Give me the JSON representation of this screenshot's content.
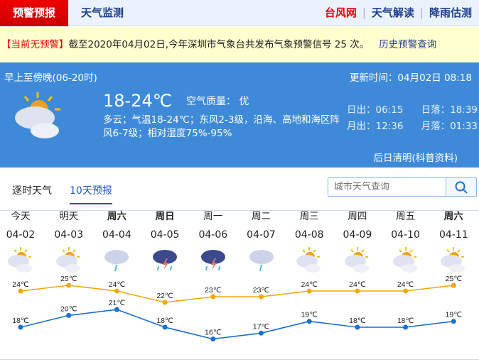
{
  "nav": {
    "active": "预警预报",
    "monitor": "天气监测",
    "links": [
      "台风网",
      "天气解读",
      "降雨估测"
    ]
  },
  "notice": {
    "status": "【当前无预警】",
    "text": "截至2020年04月02日,今年深圳市气象台共发布气象预警信号 25 次。",
    "history": "历史预警查询"
  },
  "current": {
    "period": "早上至傍晚(06-20时)",
    "update": "更新时间：04月02日 08:18",
    "temp": "18-24℃",
    "air": "空气质量： 优",
    "desc": "多云；气温18-24℃；东风2-3级，沿海、高地和海区阵风6-7级；相对湿度75%-95%",
    "sunrise": "日出：06:15",
    "sunset": "日落：18:39",
    "moonrise": "月出：12:36",
    "moonset": "月落：01:33",
    "note": "后日清明(科普资料)",
    "icon": "partly-cloudy"
  },
  "tabs": [
    "逐时天气",
    "10天预报"
  ],
  "search": {
    "placeholder": "城市天气查询"
  },
  "forecast": [
    {
      "day": "今天",
      "date": "04-02",
      "icon": "partly-cloudy",
      "high": "24℃",
      "low": "18℃"
    },
    {
      "day": "明天",
      "date": "04-03",
      "icon": "partly-cloudy",
      "high": "25℃",
      "low": "20℃"
    },
    {
      "day": "周六",
      "date": "04-04",
      "icon": "light-rain",
      "high": "24℃",
      "low": "21℃"
    },
    {
      "day": "周日",
      "date": "04-05",
      "icon": "thunderstorm",
      "high": "22℃",
      "low": "18℃"
    },
    {
      "day": "周一",
      "date": "04-06",
      "icon": "thunderstorm",
      "high": "23℃",
      "low": "16℃"
    },
    {
      "day": "周二",
      "date": "04-07",
      "icon": "light-rain",
      "high": "23℃",
      "low": "17℃"
    },
    {
      "day": "周三",
      "date": "04-08",
      "icon": "partly-cloudy",
      "high": "24℃",
      "low": "19℃"
    },
    {
      "day": "周四",
      "date": "04-09",
      "icon": "partly-cloudy",
      "high": "24℃",
      "low": "18℃"
    },
    {
      "day": "周五",
      "date": "04-10",
      "icon": "partly-cloudy",
      "high": "24℃",
      "low": "18℃"
    },
    {
      "day": "周六",
      "date": "04-11",
      "icon": "partly-cloudy",
      "high": "25℃",
      "low": "19℃"
    }
  ],
  "chart_data": {
    "type": "line",
    "categories": [
      "04-02",
      "04-03",
      "04-04",
      "04-05",
      "04-06",
      "04-07",
      "04-08",
      "04-09",
      "04-10",
      "04-11"
    ],
    "series": [
      {
        "values": [
          24,
          25,
          24,
          22,
          23,
          23,
          24,
          24,
          24,
          25
        ],
        "color": "#f5a60a"
      },
      {
        "values": [
          18,
          20,
          21,
          18,
          16,
          17,
          19,
          18,
          18,
          19
        ],
        "color": "#1a6fd0"
      }
    ]
  },
  "colors": {
    "high": "#f5a60a",
    "low": "#1a6fd0",
    "panel": "#3e8ad9",
    "alert": "#e00000"
  }
}
